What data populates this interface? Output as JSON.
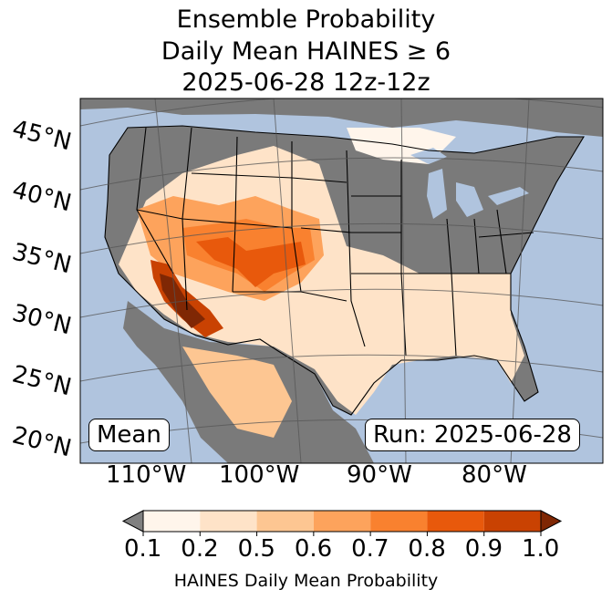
{
  "title": {
    "line1": "Ensemble Probability",
    "line2": "Daily Mean HAINES ≥ 6",
    "line3": "2025-06-28 12z-12z"
  },
  "lat_labels": [
    "45°N",
    "40°N",
    "35°N",
    "30°N",
    "25°N",
    "20°N"
  ],
  "lon_labels": [
    "110°W",
    "100°W",
    "90°W",
    "80°W"
  ],
  "badges": {
    "mean": "Mean",
    "run": "Run: 2025-06-28"
  },
  "colorbar": {
    "ticks": [
      "0.1",
      "0.2",
      "0.5",
      "0.6",
      "0.7",
      "0.8",
      "0.9",
      "1.0"
    ],
    "colors": [
      "#fff5eb",
      "#fee3c8",
      "#fdc692",
      "#fda35c",
      "#f9812f",
      "#e8590c",
      "#c94202"
    ],
    "under_color": "#808080",
    "over_color": "#7f2704",
    "label": "HAINES Daily Mean Probability"
  },
  "map_colors": {
    "ocean": "#b0c4de",
    "no_data": "#7a7a7a",
    "border": "#000000",
    "grid": "#555555"
  }
}
